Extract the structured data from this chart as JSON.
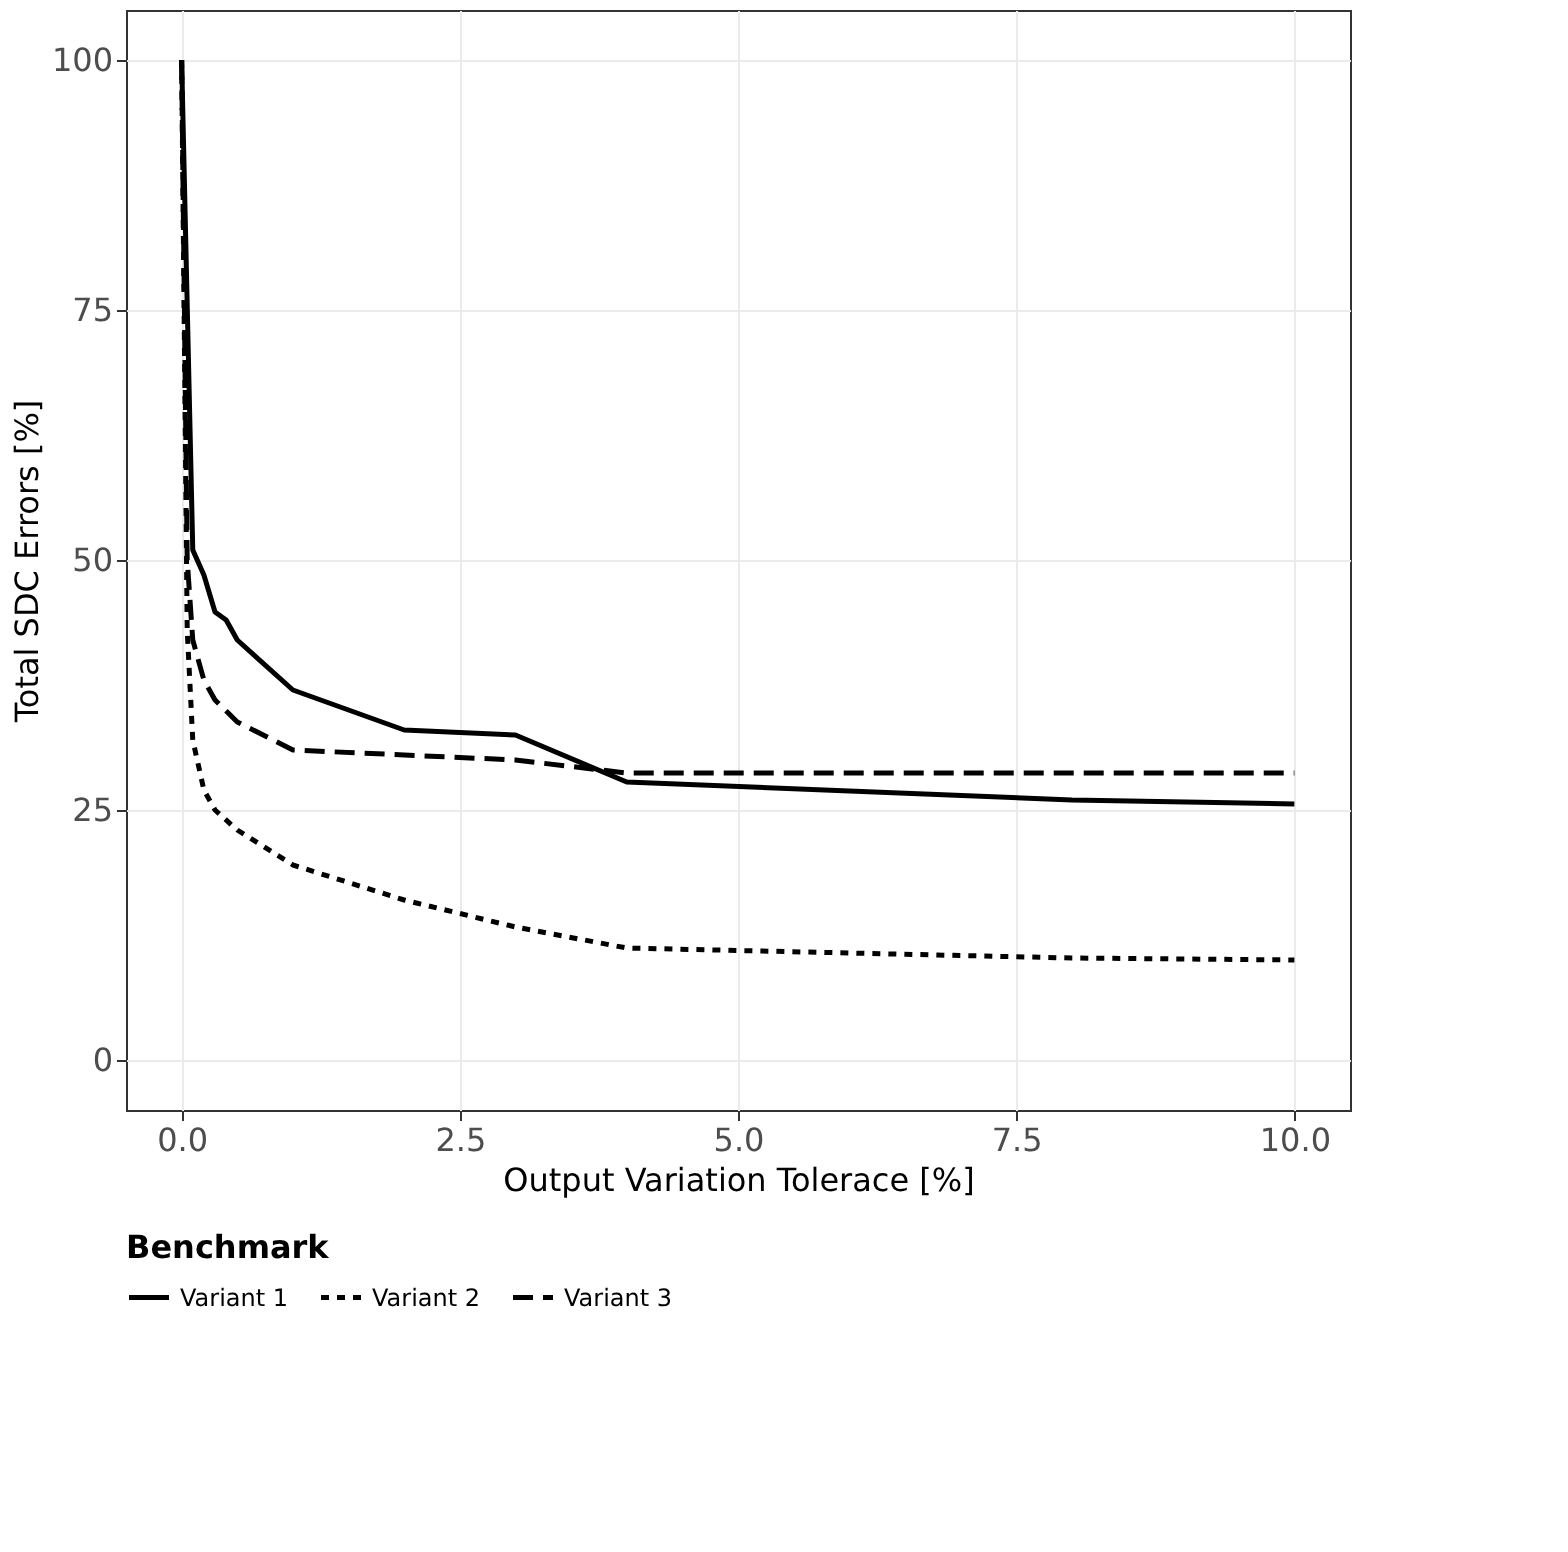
{
  "chart_data": {
    "type": "line",
    "xlabel": "Output Variation Tolerace [%]",
    "ylabel": "Total SDC Errors [%]",
    "legend_title": "Benchmark",
    "xlim": [
      -0.5,
      10.5
    ],
    "xticks": [
      {
        "value": 0,
        "label": "0.0"
      },
      {
        "value": 2.5,
        "label": "2.5"
      },
      {
        "value": 5,
        "label": "5.0"
      },
      {
        "value": 7.5,
        "label": "7.5"
      },
      {
        "value": 10,
        "label": "10.0"
      }
    ],
    "ylim": [
      -5,
      105
    ],
    "yticks": [
      0,
      25,
      50,
      75,
      100
    ],
    "grid": true,
    "legend": "bottom",
    "marker": "none",
    "series": [
      {
        "name": "Variant 1",
        "color": "#000000",
        "line_style": "solid",
        "x": [
          0,
          0.1,
          0.2,
          0.3,
          0.4,
          0.5,
          1,
          2,
          3,
          4,
          8,
          10
        ],
        "values": [
          100,
          51,
          48.5,
          44.8,
          44,
          42,
          37,
          33,
          32.5,
          27.8,
          26,
          25.6
        ]
      },
      {
        "name": "Variant 2",
        "color": "#000000",
        "line_style": "dotted",
        "x": [
          0,
          0.05,
          0.1,
          0.2,
          0.3,
          0.5,
          1,
          2,
          3,
          4,
          8,
          10
        ],
        "values": [
          100,
          43,
          32,
          27,
          25,
          23,
          19.5,
          16,
          13.3,
          11.2,
          10.2,
          10
        ]
      },
      {
        "name": "Variant 3",
        "color": "#000000",
        "line_style": "dashed",
        "x": [
          0,
          0.05,
          0.1,
          0.2,
          0.3,
          0.5,
          1,
          2,
          3,
          4,
          10
        ],
        "values": [
          100,
          50,
          42,
          38,
          36,
          33.8,
          31,
          30.5,
          30,
          28.7,
          28.7
        ]
      }
    ]
  }
}
